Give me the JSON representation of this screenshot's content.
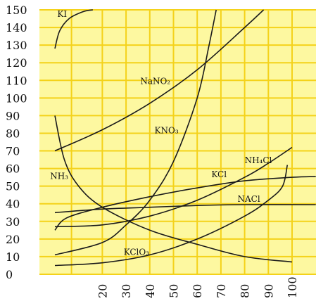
{
  "chart_data": {
    "type": "line",
    "title": "",
    "xlabel": "",
    "ylabel": "",
    "xlim": [
      0,
      100
    ],
    "ylim": [
      0,
      150
    ],
    "x_ticks": [
      20,
      30,
      40,
      50,
      60,
      70,
      80,
      90,
      100
    ],
    "y_ticks": [
      0,
      10,
      20,
      30,
      40,
      50,
      60,
      70,
      80,
      90,
      100,
      110,
      120,
      130,
      140,
      150
    ],
    "grid": true,
    "colors": {
      "background": "#fdf8a0",
      "grid": "#f4d21a",
      "curve": "#1a1a1a",
      "text": "#111111"
    },
    "series": [
      {
        "name": "KI",
        "points": [
          [
            0,
            128
          ],
          [
            2,
            138
          ],
          [
            6,
            145
          ],
          [
            12,
            149
          ],
          [
            16,
            150
          ]
        ]
      },
      {
        "name": "NaNO₂",
        "points": [
          [
            0,
            70
          ],
          [
            20,
            82
          ],
          [
            40,
            97
          ],
          [
            60,
            116
          ],
          [
            80,
            140
          ],
          [
            88,
            150
          ]
        ]
      },
      {
        "name": "KNO₃",
        "points": [
          [
            0,
            11
          ],
          [
            20,
            18
          ],
          [
            30,
            28
          ],
          [
            40,
            42
          ],
          [
            50,
            64
          ],
          [
            60,
            100
          ],
          [
            65,
            130
          ],
          [
            68,
            150
          ]
        ]
      },
      {
        "name": "NH₄Cl",
        "points": [
          [
            0,
            27
          ],
          [
            20,
            28
          ],
          [
            40,
            33
          ],
          [
            60,
            42
          ],
          [
            80,
            55
          ],
          [
            90,
            63
          ],
          [
            100,
            72
          ]
        ]
      },
      {
        "name": "KCl",
        "points": [
          [
            0,
            25
          ],
          [
            5,
            32
          ],
          [
            20,
            38
          ],
          [
            40,
            44
          ],
          [
            60,
            49
          ],
          [
            80,
            53
          ],
          [
            100,
            55
          ],
          [
            110,
            55.5
          ]
        ]
      },
      {
        "name": "NH₃",
        "points": [
          [
            0,
            90
          ],
          [
            4,
            65
          ],
          [
            10,
            50
          ],
          [
            20,
            38
          ],
          [
            40,
            25
          ],
          [
            60,
            17
          ],
          [
            80,
            10
          ],
          [
            100,
            7
          ]
        ]
      },
      {
        "name": "NaCl",
        "points": [
          [
            0,
            35
          ],
          [
            20,
            37
          ],
          [
            40,
            38
          ],
          [
            60,
            39
          ],
          [
            80,
            39.5
          ],
          [
            110,
            39.5
          ]
        ]
      },
      {
        "name": "KClO₃",
        "points": [
          [
            0,
            5
          ],
          [
            20,
            6.5
          ],
          [
            40,
            11
          ],
          [
            60,
            20
          ],
          [
            80,
            33
          ],
          [
            90,
            42
          ],
          [
            96,
            50
          ],
          [
            98,
            62
          ]
        ]
      }
    ],
    "annotations": [
      {
        "text": "KI",
        "x": 1,
        "y": 146
      },
      {
        "text": "NaNO₂",
        "x": 36,
        "y": 108
      },
      {
        "text": "KNO₃",
        "x": 42,
        "y": 80
      },
      {
        "text": "NH₄Cl",
        "x": 80,
        "y": 63
      },
      {
        "text": "KCl",
        "x": 66,
        "y": 55
      },
      {
        "text": "NH₃",
        "x": -2,
        "y": 54
      },
      {
        "text": "NACl",
        "x": 77,
        "y": 41
      },
      {
        "text": "KClO₃",
        "x": 29,
        "y": 11
      }
    ]
  }
}
